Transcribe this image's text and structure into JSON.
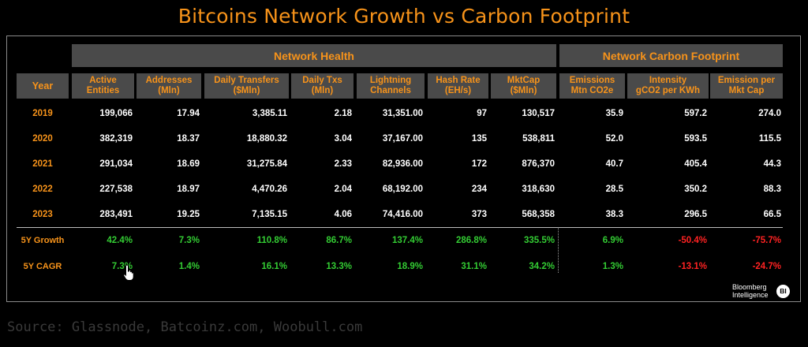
{
  "title": "Bitcoins Network Growth vs Carbon Footprint",
  "source": "Source: Glassnode, Batcoinz.com, Woobull.com",
  "logo": {
    "line1": "Bloomberg",
    "line2": "Intelligence",
    "badge": "BI"
  },
  "groups": {
    "network": "Network Health",
    "carbon": "Network Carbon Footprint"
  },
  "colors": {
    "accent": "#f7931a",
    "positive": "#33cc33",
    "negative": "#ff2222",
    "header_bg": "#4a4a4a"
  },
  "chart_data": {
    "type": "table",
    "title": "Bitcoins Network Growth vs Carbon Footprint",
    "columns": [
      "Year",
      "Active\nEntities",
      "Addresses\n(Mln)",
      "Daily Transfers\n($Mln)",
      "Daily Txs\n(Mln)",
      "Lightning\nChannels",
      "Hash Rate\n(EH/s)",
      "MktCap\n($Mln)",
      "Emissions\nMtn CO2e",
      "Intensity\ngCO2 per KWh",
      "Emission per\nMkt Cap"
    ],
    "rows": [
      [
        "2019",
        "199,066",
        "17.94",
        "3,385.11",
        "2.18",
        "31,351.00",
        "97",
        "130,517",
        "35.9",
        "597.2",
        "274.0"
      ],
      [
        "2020",
        "382,319",
        "18.37",
        "18,880.32",
        "3.04",
        "37,167.00",
        "135",
        "538,811",
        "52.0",
        "593.5",
        "115.5"
      ],
      [
        "2021",
        "291,034",
        "18.69",
        "31,275.84",
        "2.33",
        "82,936.00",
        "172",
        "876,370",
        "40.7",
        "405.4",
        "44.3"
      ],
      [
        "2022",
        "227,538",
        "18.97",
        "4,470.26",
        "2.04",
        "68,192.00",
        "234",
        "318,630",
        "28.5",
        "350.2",
        "88.3"
      ],
      [
        "2023",
        "283,491",
        "19.25",
        "7,135.15",
        "4.06",
        "74,416.00",
        "373",
        "568,358",
        "38.3",
        "296.5",
        "66.5"
      ]
    ],
    "summary": [
      {
        "label": "5Y Growth",
        "values": [
          "42.4%",
          "7.3%",
          "110.8%",
          "86.7%",
          "137.4%",
          "286.8%",
          "335.5%",
          "6.9%",
          "-50.4%",
          "-75.7%"
        ]
      },
      {
        "label": "5Y CAGR",
        "values": [
          "7.3%",
          "1.4%",
          "16.1%",
          "13.3%",
          "18.9%",
          "31.1%",
          "34.2%",
          "1.3%",
          "-13.1%",
          "-24.7%"
        ]
      }
    ]
  }
}
